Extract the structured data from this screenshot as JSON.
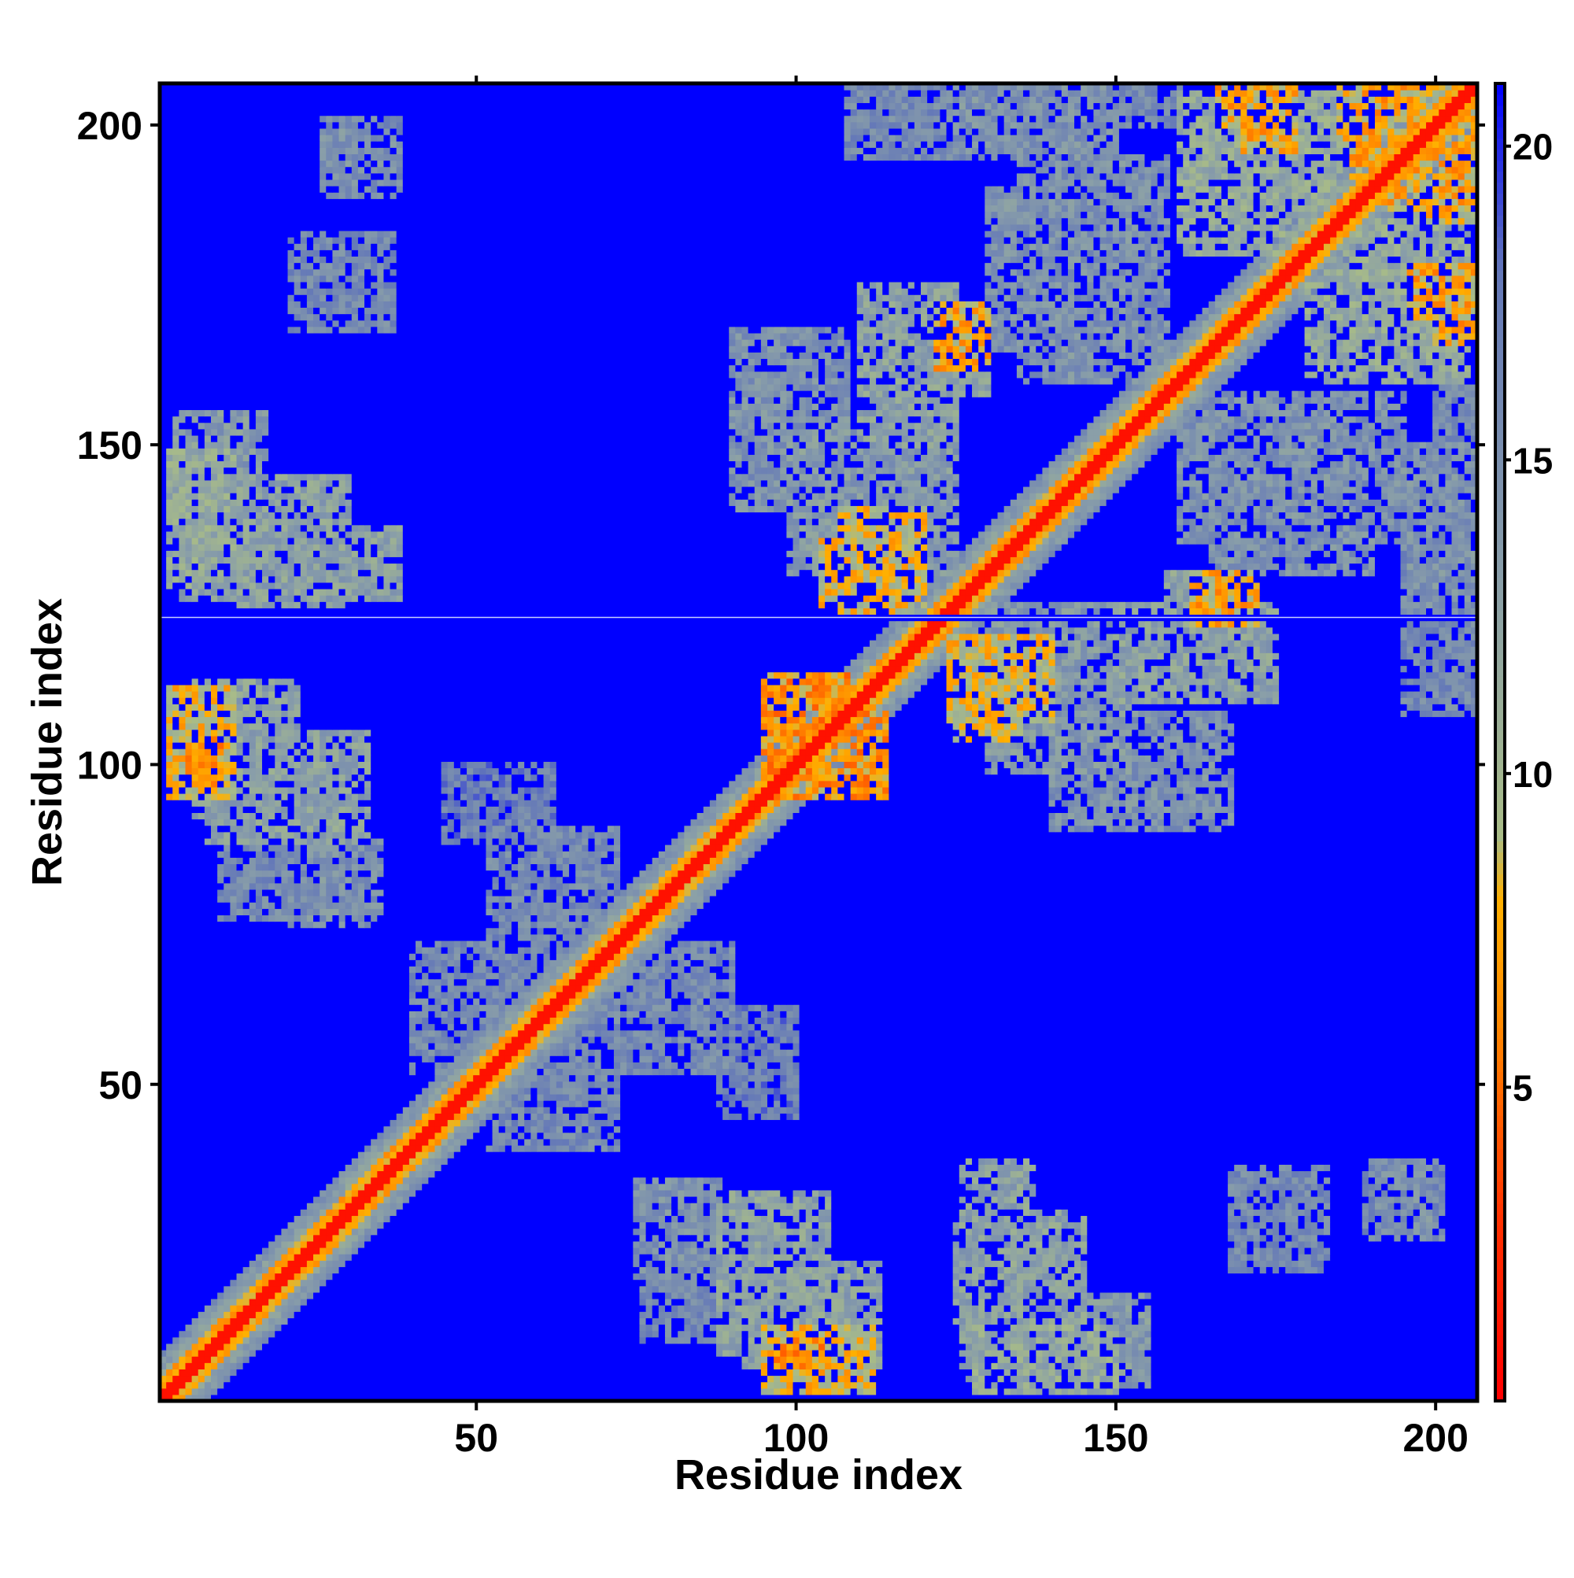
{
  "chart_data": {
    "type": "heatmap",
    "title": "",
    "xlabel": "Residue index",
    "ylabel": "Residue index",
    "n_residues": 206,
    "xlim": [
      1,
      206
    ],
    "ylim": [
      1,
      206
    ],
    "x_ticks": [
      "50",
      "100",
      "150",
      "200"
    ],
    "y_ticks": [
      "50",
      "100",
      "150",
      "200"
    ],
    "x_tick_values": [
      50,
      100,
      150,
      200
    ],
    "y_tick_values": [
      50,
      100,
      150,
      200
    ],
    "colorbar": {
      "ticks": [
        "5",
        "10",
        "15",
        "20"
      ],
      "tick_values": [
        5,
        10,
        15,
        20
      ],
      "range": [
        0,
        21
      ],
      "colors": [
        "#ff0000",
        "#ff3300",
        "#ff8800",
        "#ffb000",
        "#a9bc87",
        "#8a9fa8",
        "#6478b8",
        "#0000ff"
      ],
      "stops": [
        0,
        3,
        6,
        8,
        9,
        13,
        18,
        21
      ]
    },
    "value_units": "distance",
    "background_value": 21,
    "diagonal": {
      "width_residues": 1.5,
      "orange_band": 3,
      "green_band": 7
    },
    "blank_row_at_residue": 123,
    "contact_clusters": [
      {
        "x": [
          2,
          12
        ],
        "y": [
          95,
          112
        ],
        "level": 8
      },
      {
        "x": [
          8,
          33
        ],
        "y": [
          88,
          105
        ],
        "level": 12
      },
      {
        "x": [
          13,
          30
        ],
        "y": [
          125,
          145
        ],
        "level": 12
      },
      {
        "x": [
          2,
          12
        ],
        "y": [
          128,
          150
        ],
        "level": 11
      },
      {
        "x": [
          21,
          37
        ],
        "y": [
          168,
          182
        ],
        "level": 15
      },
      {
        "x": [
          26,
          37
        ],
        "y": [
          191,
          199
        ],
        "level": 14
      },
      {
        "x": [
          92,
          113
        ],
        "y": [
          6,
          22
        ],
        "level": 12
      },
      {
        "x": [
          97,
          104
        ],
        "y": [
          5,
          10
        ],
        "level": 6
      },
      {
        "x": [
          76,
          92
        ],
        "y": [
          10,
          30
        ],
        "level": 15
      },
      {
        "x": [
          126,
          137
        ],
        "y": [
          4,
          38
        ],
        "level": 12
      },
      {
        "x": [
          138,
          155
        ],
        "y": [
          3,
          17
        ],
        "level": 13
      },
      {
        "x": [
          168,
          183
        ],
        "y": [
          23,
          37
        ],
        "level": 15
      },
      {
        "x": [
          189,
          201
        ],
        "y": [
          26,
          38
        ],
        "level": 15
      },
      {
        "x": [
          52,
          72
        ],
        "y": [
          40,
          90
        ],
        "level": 15
      },
      {
        "x": [
          96,
          114
        ],
        "y": [
          95,
          108
        ],
        "level": 6
      },
      {
        "x": [
          107,
          120
        ],
        "y": [
          124,
          140
        ],
        "level": 8
      },
      {
        "x": [
          125,
          135
        ],
        "y": [
          104,
          117
        ],
        "level": 8
      },
      {
        "x": [
          90,
          108
        ],
        "y": [
          140,
          168
        ],
        "level": 14
      },
      {
        "x": [
          112,
          130
        ],
        "y": [
          158,
          170
        ],
        "level": 12
      },
      {
        "x": [
          130,
          152
        ],
        "y": [
          99,
          125
        ],
        "level": 13
      },
      {
        "x": [
          150,
          175
        ],
        "y": [
          110,
          125
        ],
        "level": 12
      },
      {
        "x": [
          162,
          172
        ],
        "y": [
          122,
          130
        ],
        "level": 7
      },
      {
        "x": [
          165,
          190
        ],
        "y": [
          130,
          150
        ],
        "level": 14
      },
      {
        "x": [
          160,
          185
        ],
        "y": [
          180,
          205
        ],
        "level": 11
      },
      {
        "x": [
          170,
          178
        ],
        "y": [
          196,
          206
        ],
        "level": 7
      },
      {
        "x": [
          192,
          206
        ],
        "y": [
          187,
          198
        ],
        "level": 7
      },
      {
        "x": [
          185,
          205
        ],
        "y": [
          196,
          206
        ],
        "level": 8
      },
      {
        "x": [
          200,
          206
        ],
        "y": [
          166,
          175
        ],
        "level": 7
      },
      {
        "x": [
          196,
          206
        ],
        "y": [
          125,
          150
        ],
        "level": 14
      },
      {
        "x": [
          135,
          158
        ],
        "y": [
          160,
          195
        ],
        "level": 14
      },
      {
        "x": [
          108,
          135
        ],
        "y": [
          195,
          206
        ],
        "level": 15
      },
      {
        "x": [
          140,
          160
        ],
        "y": [
          200,
          206
        ],
        "level": 15
      },
      {
        "x": [
          45,
          62
        ],
        "y": [
          88,
          100
        ],
        "level": 16
      },
      {
        "x": [
          20,
          35
        ],
        "y": [
          75,
          88
        ],
        "level": 14
      }
    ]
  }
}
